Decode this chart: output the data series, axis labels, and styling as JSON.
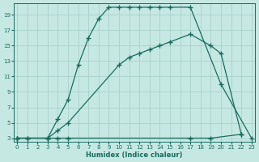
{
  "xlabel": "Humidex (Indice chaleur)",
  "bg_color": "#c5e8e3",
  "grid_color": "#a5ccc8",
  "line_color": "#1a6b5e",
  "xlim": [
    -0.3,
    23.3
  ],
  "ylim": [
    2.5,
    20.5
  ],
  "xticks": [
    0,
    1,
    2,
    3,
    4,
    5,
    6,
    7,
    8,
    9,
    10,
    11,
    12,
    13,
    14,
    15,
    16,
    17,
    18,
    19,
    20,
    21,
    22,
    23
  ],
  "yticks": [
    3,
    5,
    7,
    9,
    11,
    13,
    15,
    17,
    19
  ],
  "curve1_x": [
    0,
    1,
    3,
    4,
    5,
    6,
    7,
    8,
    9,
    10,
    11,
    12,
    13,
    14,
    15,
    17,
    20,
    23
  ],
  "curve1_y": [
    3,
    3,
    3,
    5.5,
    8,
    12.5,
    16,
    18.5,
    20,
    20,
    20,
    20,
    20,
    20,
    20,
    20,
    10,
    3
  ],
  "curve2_x": [
    0,
    3,
    4,
    5,
    10,
    11,
    12,
    13,
    14,
    15,
    17,
    19,
    20,
    22
  ],
  "curve2_y": [
    3,
    3,
    4,
    5,
    12.5,
    13.5,
    14,
    14.5,
    15,
    15.5,
    16.5,
    15,
    14,
    3.5
  ],
  "curve3_x": [
    0,
    1,
    3,
    4,
    5,
    17,
    19,
    22
  ],
  "curve3_y": [
    3,
    3,
    3,
    3,
    3,
    3,
    3,
    3.5
  ]
}
